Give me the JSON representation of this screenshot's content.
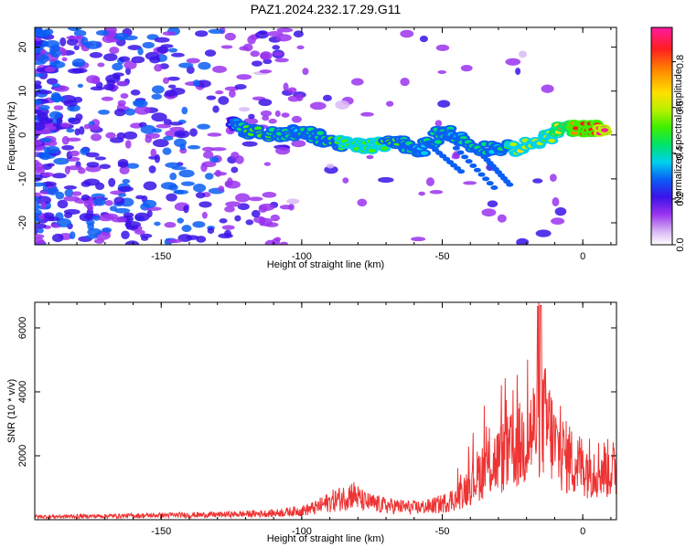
{
  "title": "PAZ1.2024.232.17.29.G11",
  "chart_data": [
    {
      "type": "heatmap",
      "xlabel": "Height of straight line (km)",
      "ylabel": "Frequency (Hz)",
      "xlim": [
        -195,
        12
      ],
      "ylim": [
        -25,
        24.5
      ],
      "xticks": [
        -150,
        -100,
        -50,
        0
      ],
      "yticks": [
        -20,
        -10,
        0,
        10,
        20
      ],
      "colorbar": {
        "label": "Normalized spectral amplitude",
        "range": [
          0.0,
          0.95
        ],
        "ticks": [
          0.0,
          0.2,
          0.4,
          0.6,
          0.8
        ],
        "tick_labels": [
          "0.0",
          "0.2",
          "0.4",
          "0.6",
          "0.8"
        ]
      },
      "ridge": [
        {
          "x": -125,
          "y": 3.5,
          "v": 0.3
        },
        {
          "x": -120,
          "y": 1.0,
          "v": 0.45
        },
        {
          "x": -112,
          "y": 0.0,
          "v": 0.45
        },
        {
          "x": -102,
          "y": 0.5,
          "v": 0.35
        },
        {
          "x": -96,
          "y": 0.0,
          "v": 0.4
        },
        {
          "x": -90,
          "y": -1.5,
          "v": 0.45
        },
        {
          "x": -82,
          "y": -2.5,
          "v": 0.5
        },
        {
          "x": -75,
          "y": -2.5,
          "v": 0.5
        },
        {
          "x": -65,
          "y": -1.5,
          "v": 0.45
        },
        {
          "x": -58,
          "y": -4.0,
          "v": 0.35
        },
        {
          "x": -50,
          "y": 1.0,
          "v": 0.4
        },
        {
          "x": -45,
          "y": -0.5,
          "v": 0.35
        },
        {
          "x": -38,
          "y": -3.0,
          "v": 0.4
        },
        {
          "x": -30,
          "y": -3.0,
          "v": 0.35
        },
        {
          "x": -22,
          "y": -3.0,
          "v": 0.6
        },
        {
          "x": -13,
          "y": -1.0,
          "v": 0.5
        },
        {
          "x": -8,
          "y": 1.5,
          "v": 0.65
        },
        {
          "x": -3,
          "y": 1.5,
          "v": 0.75
        },
        {
          "x": 3,
          "y": 1.5,
          "v": 0.8
        },
        {
          "x": 9,
          "y": 1.5,
          "v": 0.95
        }
      ]
    },
    {
      "type": "line",
      "xlabel": "Height of straight line (km)",
      "ylabel": "SNR (10 * v/v)",
      "xlim": [
        -195,
        12
      ],
      "ylim": [
        0,
        6800
      ],
      "xticks": [
        -150,
        -100,
        -50,
        0
      ],
      "yticks": [
        2000,
        4000,
        6000
      ],
      "series": [
        {
          "color": "#ee3333",
          "envelope_x": [
            -195,
            -170,
            -150,
            -130,
            -110,
            -100,
            -95,
            -90,
            -85,
            -82,
            -78,
            -70,
            -60,
            -55,
            -50,
            -45,
            -40,
            -35,
            -30,
            -25,
            -20,
            -17,
            -15,
            -12,
            -10,
            -5,
            0,
            5,
            12
          ],
          "envelope_y": [
            150,
            180,
            220,
            250,
            320,
            450,
            600,
            900,
            1100,
            1300,
            900,
            700,
            600,
            650,
            800,
            1100,
            1800,
            2600,
            3000,
            3400,
            4000,
            4600,
            5200,
            4600,
            3700,
            3000,
            2700,
            2600,
            2500
          ]
        }
      ]
    }
  ]
}
